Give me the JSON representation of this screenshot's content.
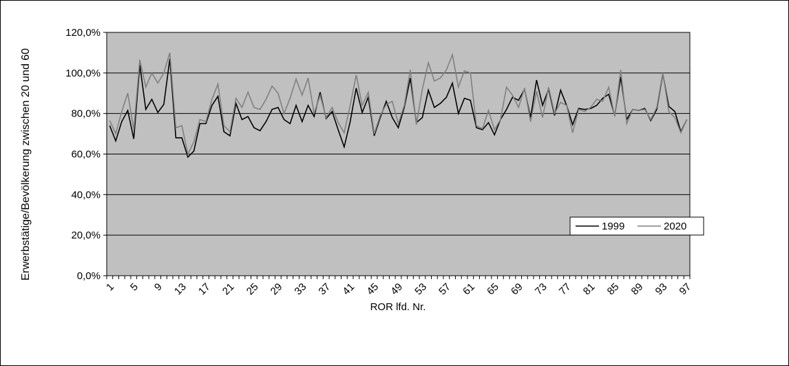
{
  "chart_data": {
    "type": "line",
    "ylabel": "Erwerbstätige/Bevölkerung zwischen 20 und 60",
    "xlabel": "ROR lfd. Nr.",
    "categories": [
      1,
      null,
      null,
      null,
      5,
      null,
      null,
      null,
      9,
      null,
      null,
      null,
      13,
      null,
      null,
      null,
      17,
      null,
      null,
      null,
      21,
      null,
      null,
      null,
      25,
      null,
      null,
      null,
      29,
      null,
      null,
      null,
      33,
      null,
      null,
      null,
      37,
      null,
      null,
      null,
      41,
      null,
      null,
      null,
      45,
      null,
      null,
      null,
      49,
      null,
      null,
      null,
      53,
      null,
      null,
      null,
      57,
      null,
      null,
      null,
      61,
      null,
      null,
      null,
      65,
      null,
      null,
      null,
      69,
      null,
      null,
      null,
      73,
      null,
      null,
      null,
      77,
      null,
      null,
      null,
      81,
      null,
      null,
      null,
      85,
      null,
      null,
      null,
      89,
      null,
      null,
      null,
      93,
      null,
      null,
      null,
      97
    ],
    "series": [
      {
        "name": "1999",
        "color": "#000000",
        "values": [
          74,
          66.5,
          76,
          81.5,
          67.5,
          104,
          82,
          87,
          80.5,
          84.5,
          107,
          68,
          68,
          58.5,
          61.5,
          75,
          75,
          84,
          88.5,
          71,
          69,
          85,
          77,
          78.5,
          73,
          71.5,
          76,
          82,
          83,
          77,
          75,
          84,
          76,
          84,
          78.5,
          90.5,
          77.5,
          81,
          72,
          63.5,
          76,
          92.5,
          80.5,
          88,
          69,
          78,
          86,
          78,
          73,
          83,
          97.5,
          75.5,
          78,
          91.5,
          83,
          85,
          88,
          95,
          80,
          87.5,
          86.5,
          73,
          72,
          75.5,
          69.5,
          77,
          82,
          88,
          86.5,
          92,
          78,
          96.5,
          84,
          92,
          79,
          91.5,
          84,
          74.5,
          82.5,
          82,
          82.5,
          84,
          87.5,
          89.5,
          79,
          98,
          77,
          82,
          81.5,
          82.5,
          76.5,
          82,
          99.5,
          83.5,
          81,
          71,
          77
        ]
      },
      {
        "name": "2020",
        "color": "#808080",
        "values": [
          76.5,
          70,
          81,
          90,
          72,
          106.5,
          93,
          100,
          95,
          100,
          110,
          73,
          74,
          60,
          66,
          77,
          76,
          87,
          94.5,
          74,
          71,
          87.5,
          83,
          90.5,
          83,
          82,
          87,
          93.5,
          90,
          80,
          87.5,
          97,
          89,
          97.5,
          80,
          89,
          78,
          83,
          75.5,
          70.5,
          84,
          99,
          84,
          90.5,
          70,
          79,
          84.5,
          86,
          75,
          84,
          101.5,
          74.5,
          92,
          105,
          96,
          97.5,
          101.5,
          109,
          93,
          101,
          100,
          74,
          72.5,
          81.5,
          72,
          77,
          93,
          89,
          83,
          92.5,
          76,
          91,
          78,
          93,
          80,
          85.5,
          84,
          70.5,
          82,
          81,
          83,
          87,
          86,
          93,
          78.5,
          101.5,
          75,
          82,
          81.5,
          82,
          77,
          83,
          100,
          81,
          78,
          70.5,
          77
        ]
      }
    ],
    "ylim": [
      0,
      120
    ],
    "yticks": [
      {
        "value": 0,
        "label": "0,0%"
      },
      {
        "value": 20,
        "label": "20,0%"
      },
      {
        "value": 40,
        "label": "40,0%"
      },
      {
        "value": 60,
        "label": "60,0%"
      },
      {
        "value": 80,
        "label": "80,0%"
      },
      {
        "value": 100,
        "label": "100,0%"
      },
      {
        "value": 120,
        "label": "120,0%"
      }
    ],
    "grid": true,
    "legend": "right",
    "plot_color": "#c0c0c0"
  }
}
